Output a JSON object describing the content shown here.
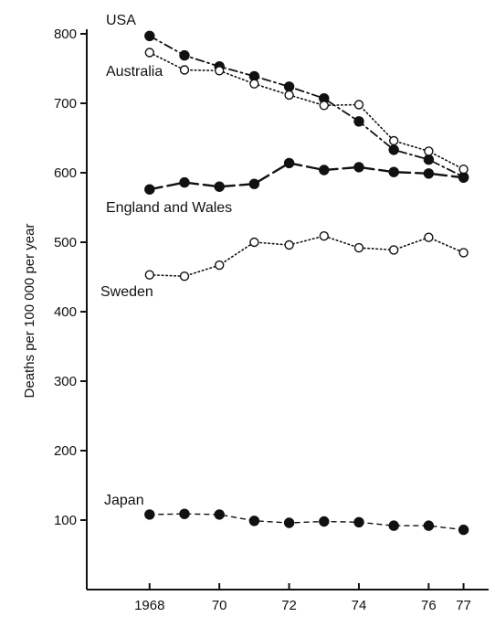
{
  "chart_data": {
    "type": "line",
    "title": "",
    "xlabel": "",
    "ylabel": "Deaths per 100 000 per year",
    "xlim": [
      1966.2,
      1977.2
    ],
    "ylim": [
      0,
      800
    ],
    "grid": false,
    "legend": "none (series labelled directly on the plot)",
    "x_ticks": [
      {
        "value": 1968,
        "label": "1968"
      },
      {
        "value": 1970,
        "label": "70"
      },
      {
        "value": 1972,
        "label": "72"
      },
      {
        "value": 1974,
        "label": "74"
      },
      {
        "value": 1976,
        "label": "76"
      },
      {
        "value": 1977,
        "label": "77"
      }
    ],
    "y_ticks": [
      {
        "value": 100,
        "label": "100"
      },
      {
        "value": 200,
        "label": "200"
      },
      {
        "value": 300,
        "label": "300"
      },
      {
        "value": 400,
        "label": "400"
      },
      {
        "value": 500,
        "label": "500"
      },
      {
        "value": 600,
        "label": "600"
      },
      {
        "value": 700,
        "label": "700"
      },
      {
        "value": 800,
        "label": "800"
      }
    ],
    "series": [
      {
        "name": "USA",
        "marker": "filled",
        "line": "dash-dot",
        "x": [
          1968,
          1969,
          1970,
          1971,
          1972,
          1973,
          1974,
          1975,
          1976,
          1977
        ],
        "y": [
          797,
          769,
          753,
          739,
          724,
          707,
          674,
          633,
          619,
          594
        ]
      },
      {
        "name": "Australia",
        "marker": "open",
        "line": "dotted",
        "x": [
          1968,
          1969,
          1970,
          1971,
          1972,
          1973,
          1974,
          1975,
          1976,
          1977
        ],
        "y": [
          773,
          748,
          747,
          728,
          712,
          697,
          698,
          646,
          631,
          605
        ]
      },
      {
        "name": "England and Wales",
        "marker": "filled",
        "line": "long-dash",
        "x": [
          1968,
          1969,
          1970,
          1971,
          1972,
          1973,
          1974,
          1975,
          1976,
          1977
        ],
        "y": [
          576,
          586,
          580,
          584,
          614,
          604,
          608,
          601,
          599,
          593
        ]
      },
      {
        "name": "Sweden",
        "marker": "open",
        "line": "dotted",
        "x": [
          1968,
          1969,
          1970,
          1971,
          1972,
          1973,
          1974,
          1975,
          1976,
          1977
        ],
        "y": [
          453,
          451,
          467,
          500,
          496,
          509,
          492,
          489,
          507,
          485
        ]
      },
      {
        "name": "Japan",
        "marker": "filled",
        "line": "short-dash",
        "x": [
          1968,
          1969,
          1970,
          1971,
          1972,
          1973,
          1974,
          1975,
          1976,
          1977
        ],
        "y": [
          108,
          109,
          108,
          99,
          96,
          98,
          97,
          92,
          92,
          86
        ]
      }
    ]
  }
}
